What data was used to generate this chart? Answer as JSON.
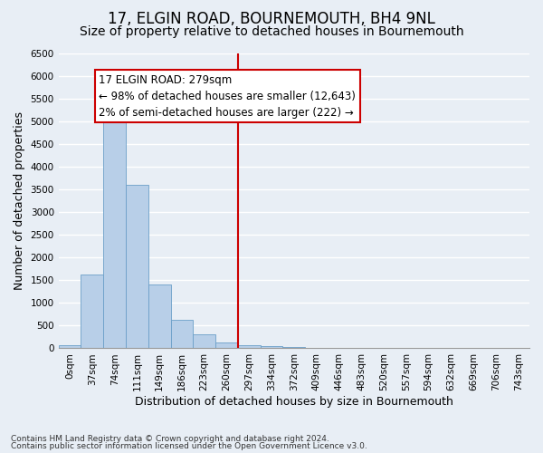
{
  "title": "17, ELGIN ROAD, BOURNEMOUTH, BH4 9NL",
  "subtitle": "Size of property relative to detached houses in Bournemouth",
  "xlabel": "Distribution of detached houses by size in Bournemouth",
  "ylabel": "Number of detached properties",
  "footer_line1": "Contains HM Land Registry data © Crown copyright and database right 2024.",
  "footer_line2": "Contains public sector information licensed under the Open Government Licence v3.0.",
  "bar_labels": [
    "0sqm",
    "37sqm",
    "74sqm",
    "111sqm",
    "149sqm",
    "186sqm",
    "223sqm",
    "260sqm",
    "297sqm",
    "334sqm",
    "372sqm",
    "409sqm",
    "446sqm",
    "483sqm",
    "520sqm",
    "557sqm",
    "594sqm",
    "632sqm",
    "669sqm",
    "706sqm",
    "743sqm"
  ],
  "bar_values": [
    75,
    1630,
    5060,
    3600,
    1400,
    620,
    310,
    120,
    75,
    40,
    25,
    15,
    10,
    5,
    3,
    3,
    3,
    3,
    3,
    3,
    3
  ],
  "bar_color": "#b8cfe8",
  "bar_edge_color": "#6b9fc8",
  "ylim": [
    0,
    6500
  ],
  "yticks": [
    0,
    500,
    1000,
    1500,
    2000,
    2500,
    3000,
    3500,
    4000,
    4500,
    5000,
    5500,
    6000,
    6500
  ],
  "vline_color": "#cc0000",
  "annotation_text": "17 ELGIN ROAD: 279sqm\n← 98% of detached houses are smaller (12,643)\n2% of semi-detached houses are larger (222) →",
  "annotation_box_color": "#ffffff",
  "annotation_box_edge": "#cc0000",
  "bg_color": "#e8eef5",
  "plot_bg_color": "#e8eef5",
  "grid_color": "#ffffff",
  "title_fontsize": 12,
  "subtitle_fontsize": 10,
  "axis_label_fontsize": 9,
  "tick_fontsize": 7.5,
  "annotation_fontsize": 8.5,
  "footer_fontsize": 6.5
}
